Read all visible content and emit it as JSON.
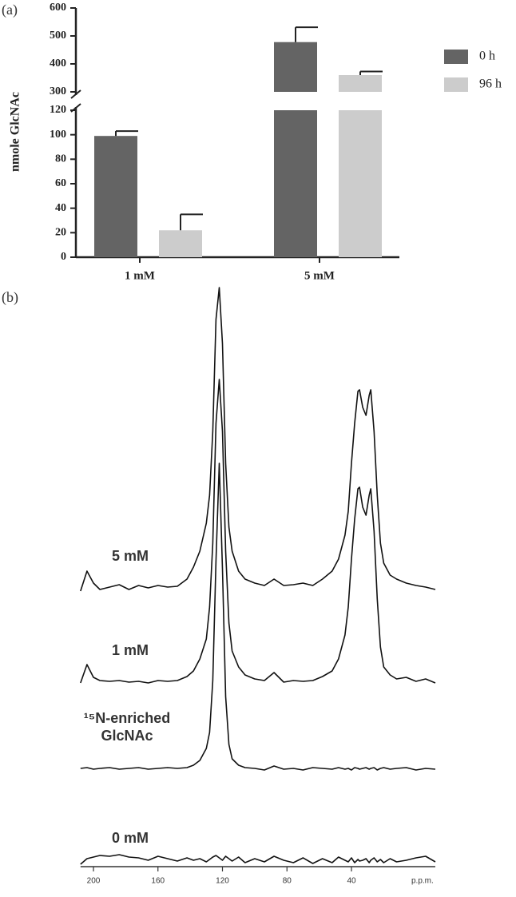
{
  "chart_data": [
    {
      "type": "bar",
      "panel_label": "(a)",
      "ylabel": "nmole GlcNAc",
      "categories": [
        "1 mM",
        "5 mM"
      ],
      "series": [
        {
          "name": "0 h",
          "color": "#646464",
          "values": [
            99,
            478
          ],
          "errors": [
            4,
            53
          ]
        },
        {
          "name": "96 h",
          "color": "#cccccc",
          "values": [
            22,
            360
          ],
          "errors": [
            13,
            13
          ]
        }
      ],
      "ylim": [
        0,
        600
      ],
      "ybreak": [
        120,
        300
      ],
      "yticks": [
        0,
        20,
        40,
        60,
        80,
        100,
        120,
        300,
        400,
        500,
        600
      ]
    },
    {
      "type": "line",
      "panel_label": "(b)",
      "xlabel": "p.p.m.",
      "xlim": [
        208,
        -12
      ],
      "xticks": [
        200,
        160,
        120,
        80,
        40
      ],
      "x": [
        208,
        204,
        200,
        196,
        190,
        184,
        178,
        172,
        166,
        160,
        154,
        148,
        142,
        138,
        134,
        130,
        128,
        126,
        124,
        122,
        120,
        118,
        116,
        114,
        110,
        106,
        100,
        94,
        88,
        82,
        76,
        70,
        64,
        58,
        52,
        48,
        44,
        42,
        40,
        38,
        36,
        35,
        33,
        31,
        29,
        28,
        26,
        24,
        22,
        20,
        16,
        12,
        6,
        0,
        -6,
        -12
      ],
      "series": [
        {
          "name": "5 mM",
          "color": "#111111",
          "values": [
            -10,
            15,
            0,
            -8,
            -5,
            -2,
            -8,
            -3,
            -6,
            -3,
            -5,
            -4,
            5,
            20,
            40,
            75,
            110,
            190,
            330,
            370,
            300,
            150,
            70,
            40,
            15,
            5,
            0,
            -3,
            5,
            -3,
            -2,
            0,
            -3,
            5,
            15,
            30,
            60,
            90,
            150,
            200,
            240,
            242,
            220,
            210,
            235,
            242,
            190,
            110,
            50,
            25,
            10,
            5,
            0,
            -3,
            -5,
            -8
          ]
        },
        {
          "name": "1 mM",
          "color": "#111111",
          "values": [
            -5,
            18,
            2,
            -2,
            -3,
            -2,
            -4,
            -3,
            -5,
            -2,
            -3,
            -2,
            3,
            10,
            25,
            50,
            90,
            170,
            320,
            375,
            310,
            160,
            70,
            35,
            15,
            5,
            0,
            -2,
            8,
            -4,
            -2,
            -3,
            -2,
            3,
            10,
            25,
            55,
            90,
            150,
            200,
            238,
            240,
            215,
            205,
            230,
            238,
            185,
            100,
            40,
            15,
            5,
            0,
            2,
            -3,
            0,
            -5
          ]
        },
        {
          "name": "¹⁵N-enriched GlcNAc",
          "color": "#111111",
          "values": [
            0,
            1,
            -1,
            0,
            1,
            -1,
            0,
            1,
            -1,
            0,
            1,
            0,
            1,
            4,
            10,
            25,
            45,
            110,
            260,
            382,
            250,
            90,
            30,
            12,
            4,
            1,
            0,
            -2,
            3,
            -1,
            0,
            -2,
            1,
            0,
            -1,
            1,
            -1,
            0,
            -2,
            1,
            0,
            -1,
            0,
            1,
            -1,
            0,
            1,
            -2,
            0,
            1,
            -1,
            0,
            1,
            -2,
            0,
            -1
          ]
        },
        {
          "name": "0 mM",
          "color": "#111111",
          "values": [
            -5,
            2,
            4,
            6,
            5,
            7,
            4,
            3,
            0,
            5,
            2,
            -1,
            3,
            0,
            2,
            -2,
            1,
            4,
            6,
            3,
            0,
            5,
            2,
            -1,
            4,
            -3,
            2,
            -2,
            5,
            0,
            -3,
            3,
            -4,
            2,
            -3,
            4,
            0,
            -2,
            3,
            -3,
            1,
            -1,
            0,
            2,
            -3,
            0,
            3,
            -2,
            1,
            -3,
            2,
            -2,
            0,
            3,
            5,
            -2
          ]
        }
      ]
    }
  ]
}
